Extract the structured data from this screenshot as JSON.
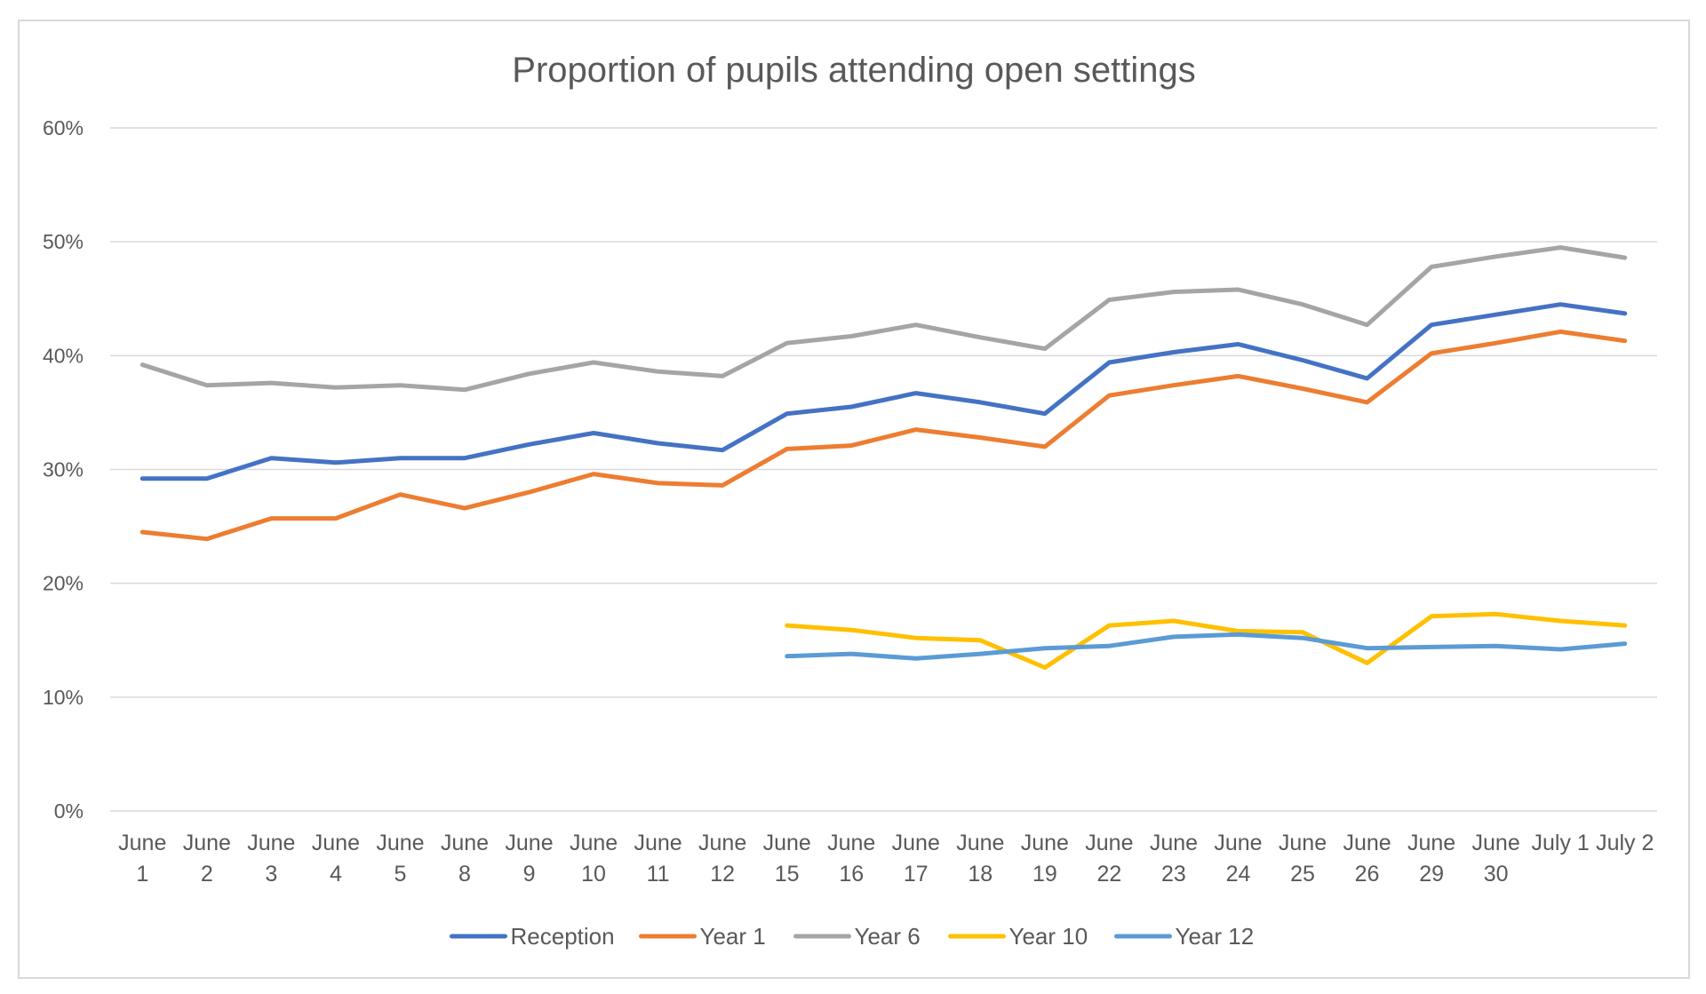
{
  "chart_data": {
    "type": "line",
    "title": "Proportion of pupils attending open settings",
    "xlabel": "",
    "ylabel": "",
    "ylim": [
      0,
      60
    ],
    "yticks": [
      "0%",
      "10%",
      "20%",
      "30%",
      "40%",
      "50%",
      "60%"
    ],
    "grid": true,
    "legend_position": "bottom",
    "categories": [
      [
        "June",
        "1"
      ],
      [
        "June",
        "2"
      ],
      [
        "June",
        "3"
      ],
      [
        "June",
        "4"
      ],
      [
        "June",
        "5"
      ],
      [
        "June",
        "8"
      ],
      [
        "June",
        "9"
      ],
      [
        "June",
        "10"
      ],
      [
        "June",
        "11"
      ],
      [
        "June",
        "12"
      ],
      [
        "June",
        "15"
      ],
      [
        "June",
        "16"
      ],
      [
        "June",
        "17"
      ],
      [
        "June",
        "18"
      ],
      [
        "June",
        "19"
      ],
      [
        "June",
        "22"
      ],
      [
        "June",
        "23"
      ],
      [
        "June",
        "24"
      ],
      [
        "June",
        "25"
      ],
      [
        "June",
        "26"
      ],
      [
        "June",
        "29"
      ],
      [
        "June",
        "30"
      ],
      [
        "July 1",
        ""
      ],
      [
        "July 2",
        ""
      ]
    ],
    "series": [
      {
        "name": "Reception",
        "color": "#4472C4",
        "values": [
          29.2,
          29.2,
          31.0,
          30.6,
          31.0,
          31.0,
          32.2,
          33.2,
          32.3,
          31.7,
          34.9,
          35.5,
          36.7,
          35.9,
          34.9,
          39.4,
          40.3,
          41.0,
          39.6,
          38.0,
          42.7,
          43.6,
          44.5,
          43.7
        ]
      },
      {
        "name": "Year 1",
        "color": "#ED7D31",
        "values": [
          24.5,
          23.9,
          25.7,
          25.7,
          27.8,
          26.6,
          28.0,
          29.6,
          28.8,
          28.6,
          31.8,
          32.1,
          33.5,
          32.8,
          32.0,
          36.5,
          37.4,
          38.2,
          37.1,
          35.9,
          40.2,
          41.1,
          42.1,
          41.3
        ]
      },
      {
        "name": "Year 6",
        "color": "#A5A5A5",
        "values": [
          39.2,
          37.4,
          37.6,
          37.2,
          37.4,
          37.0,
          38.4,
          39.4,
          38.6,
          38.2,
          41.1,
          41.7,
          42.7,
          41.6,
          40.6,
          44.9,
          45.6,
          45.8,
          44.5,
          42.7,
          47.8,
          48.7,
          49.5,
          48.6
        ]
      },
      {
        "name": "Year 10",
        "color": "#FFC000",
        "values": [
          null,
          null,
          null,
          null,
          null,
          null,
          null,
          null,
          null,
          null,
          16.3,
          15.9,
          15.2,
          15.0,
          12.6,
          16.3,
          16.7,
          15.8,
          15.7,
          13.0,
          17.1,
          17.3,
          16.7,
          16.3
        ]
      },
      {
        "name": "Year 12",
        "color": "#5B9BD5",
        "values": [
          null,
          null,
          null,
          null,
          null,
          null,
          null,
          null,
          null,
          null,
          13.6,
          13.8,
          13.4,
          13.8,
          14.3,
          14.5,
          15.3,
          15.5,
          15.2,
          14.3,
          14.4,
          14.5,
          14.2,
          14.7
        ]
      }
    ]
  }
}
